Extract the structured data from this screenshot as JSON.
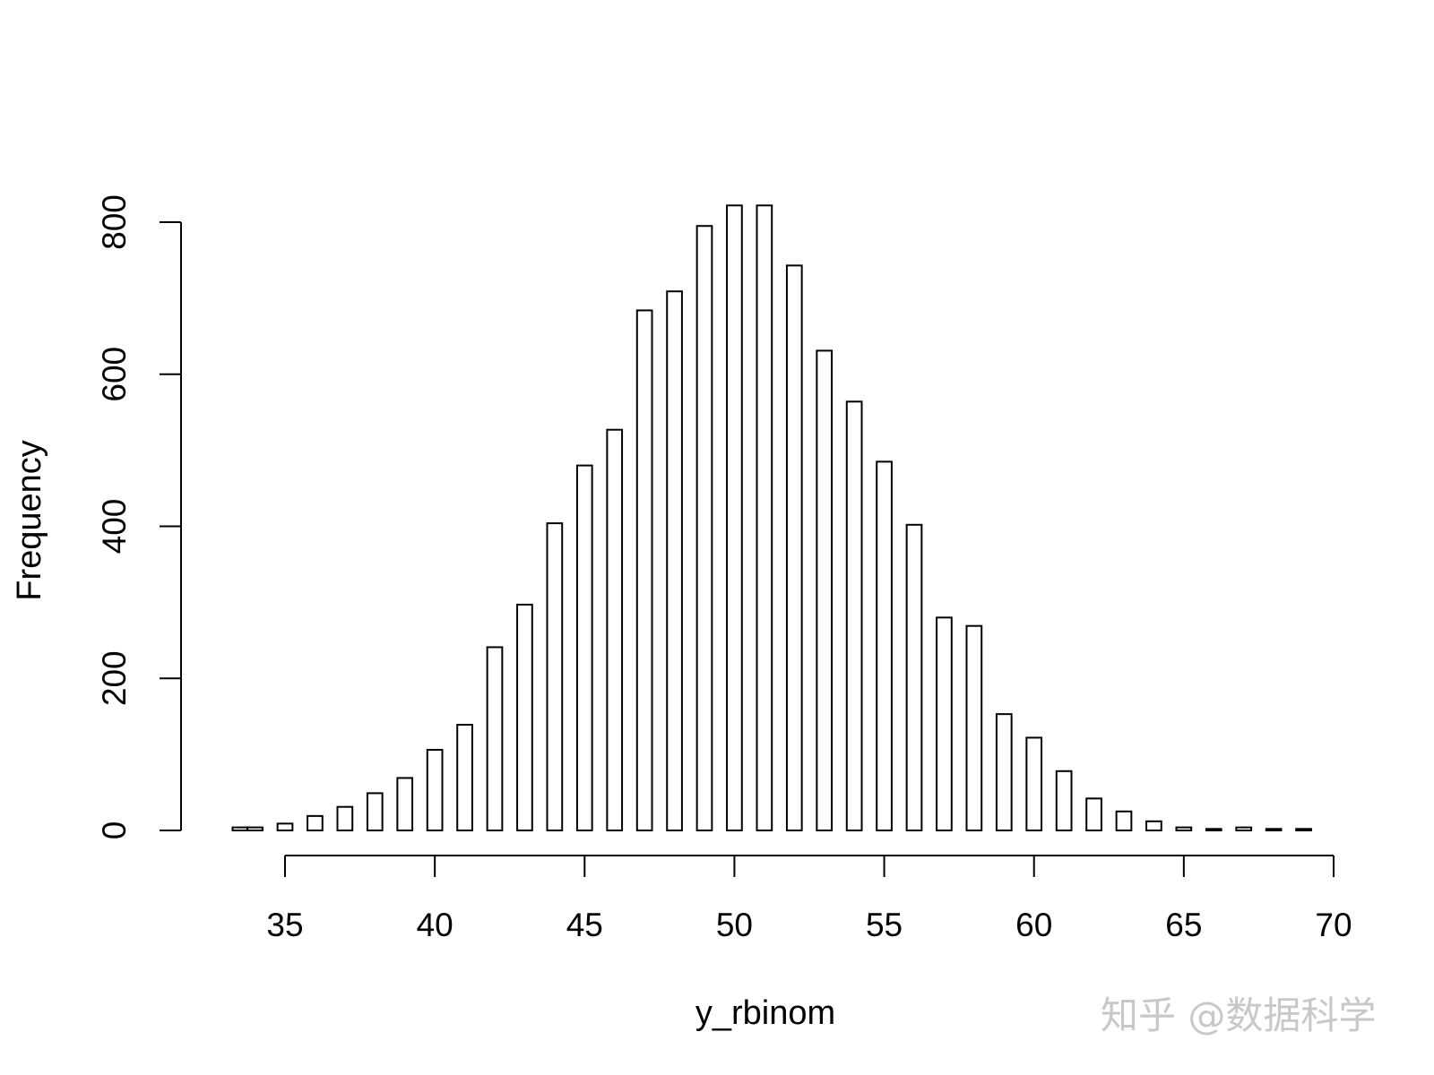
{
  "watermark": "知乎 @数据科学",
  "chart_data": {
    "type": "bar",
    "subtype": "histogram",
    "title": "",
    "xlabel": "y_rbinom",
    "ylabel": "Frequency",
    "bin_width": 1,
    "xlim": [
      33,
      70
    ],
    "ylim": [
      0,
      840
    ],
    "x_ticks": [
      35,
      40,
      45,
      50,
      55,
      60,
      65,
      70
    ],
    "y_ticks": [
      0,
      200,
      400,
      600,
      800
    ],
    "grid": false,
    "legend": "none",
    "bar_fill": "#ffffff",
    "bar_stroke": "#000000",
    "bins": [
      {
        "x": 33.5,
        "value": 4
      },
      {
        "x": 34,
        "value": 4
      },
      {
        "x": 35,
        "value": 9
      },
      {
        "x": 36,
        "value": 19
      },
      {
        "x": 37,
        "value": 31
      },
      {
        "x": 38,
        "value": 49
      },
      {
        "x": 39,
        "value": 69
      },
      {
        "x": 40,
        "value": 106
      },
      {
        "x": 41,
        "value": 139
      },
      {
        "x": 42,
        "value": 241
      },
      {
        "x": 43,
        "value": 297
      },
      {
        "x": 44,
        "value": 404
      },
      {
        "x": 45,
        "value": 480
      },
      {
        "x": 46,
        "value": 527
      },
      {
        "x": 47,
        "value": 684
      },
      {
        "x": 48,
        "value": 709
      },
      {
        "x": 49,
        "value": 795
      },
      {
        "x": 50,
        "value": 822
      },
      {
        "x": 51,
        "value": 822
      },
      {
        "x": 52,
        "value": 743
      },
      {
        "x": 53,
        "value": 631
      },
      {
        "x": 54,
        "value": 564
      },
      {
        "x": 55,
        "value": 485
      },
      {
        "x": 56,
        "value": 402
      },
      {
        "x": 57,
        "value": 280
      },
      {
        "x": 58,
        "value": 269
      },
      {
        "x": 59,
        "value": 153
      },
      {
        "x": 60,
        "value": 122
      },
      {
        "x": 61,
        "value": 78
      },
      {
        "x": 62,
        "value": 42
      },
      {
        "x": 63,
        "value": 25
      },
      {
        "x": 64,
        "value": 12
      },
      {
        "x": 65,
        "value": 4
      },
      {
        "x": 66,
        "value": 2
      },
      {
        "x": 67,
        "value": 4
      },
      {
        "x": 68,
        "value": 2
      },
      {
        "x": 69,
        "value": 2
      }
    ]
  }
}
